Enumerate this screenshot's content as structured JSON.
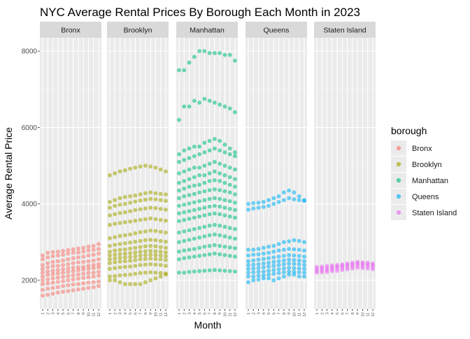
{
  "chart_data": {
    "type": "scatter",
    "title": "NYC Average Rental Prices By Borough Each Month in 2023",
    "xlabel": "Month",
    "ylabel": "Average Rental Price",
    "x_ticks": [
      "1",
      "2",
      "3",
      "4",
      "5",
      "6",
      "7",
      "8",
      "9",
      "10",
      "11",
      "12"
    ],
    "y_ticks": [
      2000,
      4000,
      6000,
      8000
    ],
    "ylim": [
      1250,
      8350
    ],
    "grid": true,
    "legend": {
      "title": "borough",
      "position": "right"
    },
    "facets": [
      "Bronx",
      "Brooklyn",
      "Manhattan",
      "Queens",
      "Staten Island"
    ],
    "series": [
      {
        "name": "Bronx",
        "color": "#F8766D",
        "lines": [
          [
            2650,
            2720,
            2740,
            2750,
            2770,
            2790,
            2810,
            2830,
            2850,
            2880,
            2900,
            2950
          ],
          [
            2550,
            2600,
            2630,
            2650,
            2670,
            2700,
            2720,
            2730,
            2750,
            2780,
            2800,
            2820
          ],
          [
            2400,
            2450,
            2480,
            2500,
            2520,
            2550,
            2580,
            2600,
            2620,
            2650,
            2670,
            2700
          ],
          [
            2300,
            2340,
            2370,
            2380,
            2400,
            2420,
            2450,
            2470,
            2480,
            2500,
            2520,
            2550
          ],
          [
            2200,
            2230,
            2250,
            2270,
            2290,
            2310,
            2330,
            2340,
            2350,
            2380,
            2400,
            2420
          ],
          [
            2100,
            2140,
            2160,
            2180,
            2200,
            2220,
            2240,
            2260,
            2280,
            2300,
            2320,
            2340
          ],
          [
            2000,
            2020,
            2050,
            2070,
            2090,
            2110,
            2130,
            2150,
            2170,
            2190,
            2200,
            2220
          ],
          [
            1900,
            1920,
            1940,
            1960,
            1980,
            2000,
            2020,
            2040,
            2060,
            2080,
            2100,
            2120
          ],
          [
            1750,
            1780,
            1800,
            1820,
            1850,
            1870,
            1890,
            1900,
            1920,
            1940,
            1950,
            1970
          ],
          [
            1600,
            1620,
            1650,
            1680,
            1700,
            1720,
            1740,
            1760,
            1780,
            1800,
            1820,
            1850
          ]
        ]
      },
      {
        "name": "Brooklyn",
        "color": "#A3A500",
        "lines": [
          [
            4750,
            4800,
            4850,
            4880,
            4920,
            4950,
            4980,
            5000,
            4980,
            4950,
            4900,
            4850
          ],
          [
            4050,
            4100,
            4150,
            4180,
            4200,
            4220,
            4250,
            4280,
            4300,
            4280,
            4260,
            4250
          ],
          [
            3900,
            3950,
            3980,
            4000,
            4030,
            4060,
            4090,
            4110,
            4130,
            4120,
            4100,
            4080
          ],
          [
            3700,
            3730,
            3760,
            3780,
            3810,
            3840,
            3860,
            3880,
            3900,
            3890,
            3870,
            3850
          ],
          [
            3450,
            3480,
            3500,
            3520,
            3540,
            3560,
            3580,
            3600,
            3620,
            3600,
            3580,
            3560
          ],
          [
            3100,
            3130,
            3160,
            3180,
            3200,
            3230,
            3260,
            3280,
            3300,
            3290,
            3270,
            3250
          ],
          [
            2900,
            2930,
            2950,
            2970,
            2990,
            3010,
            3030,
            3050,
            3060,
            3050,
            3030,
            3010
          ],
          [
            2750,
            2780,
            2800,
            2810,
            2830,
            2850,
            2870,
            2890,
            2900,
            2890,
            2870,
            2850
          ],
          [
            2650,
            2670,
            2690,
            2700,
            2710,
            2730,
            2750,
            2760,
            2770,
            2760,
            2750,
            2730
          ],
          [
            2550,
            2570,
            2590,
            2600,
            2610,
            2630,
            2650,
            2660,
            2670,
            2660,
            2650,
            2630
          ],
          [
            2450,
            2470,
            2490,
            2500,
            2510,
            2530,
            2550,
            2560,
            2570,
            2560,
            2550,
            2530
          ],
          [
            2300,
            2320,
            2340,
            2350,
            2360,
            2380,
            2400,
            2410,
            2420,
            2410,
            2400,
            2380
          ],
          [
            2100,
            2110,
            2130,
            2140,
            2150,
            2170,
            2190,
            2200,
            2210,
            2200,
            2190,
            2180
          ],
          [
            2000,
            2000,
            1950,
            1900,
            1900,
            1900,
            1900,
            1950,
            2000,
            2050,
            2100,
            2150
          ]
        ]
      },
      {
        "name": "Manhattan",
        "color": "#00BF7D",
        "lines": [
          [
            7500,
            7500,
            7700,
            7850,
            8000,
            8000,
            7950,
            7950,
            7950,
            7900,
            7900,
            7750
          ],
          [
            6200,
            6550,
            6550,
            6700,
            6650,
            6750,
            6700,
            6650,
            6600,
            6550,
            6500,
            6400
          ],
          [
            5300,
            5400,
            5450,
            5500,
            5500,
            5600,
            5650,
            5700,
            5650,
            5550,
            5450,
            5350
          ],
          [
            5100,
            5150,
            5200,
            5250,
            5300,
            5350,
            5400,
            5450,
            5400,
            5350,
            5300,
            5250
          ],
          [
            4800,
            4850,
            4900,
            4950,
            4950,
            5000,
            5050,
            5100,
            5050,
            5000,
            4950,
            4900
          ],
          [
            4550,
            4600,
            4650,
            4700,
            4750,
            4750,
            4800,
            4850,
            4800,
            4750,
            4700,
            4650
          ],
          [
            4350,
            4400,
            4450,
            4480,
            4500,
            4550,
            4600,
            4620,
            4600,
            4550,
            4500,
            4450
          ],
          [
            4150,
            4200,
            4230,
            4260,
            4300,
            4330,
            4360,
            4380,
            4360,
            4330,
            4300,
            4250
          ],
          [
            3950,
            3980,
            4010,
            4040,
            4070,
            4100,
            4130,
            4150,
            4130,
            4100,
            4070,
            4030
          ],
          [
            3750,
            3780,
            3810,
            3840,
            3870,
            3900,
            3930,
            3950,
            3930,
            3900,
            3870,
            3840
          ],
          [
            3550,
            3580,
            3610,
            3640,
            3670,
            3700,
            3730,
            3750,
            3730,
            3700,
            3670,
            3640
          ],
          [
            3250,
            3280,
            3310,
            3340,
            3370,
            3400,
            3430,
            3450,
            3430,
            3400,
            3370,
            3340
          ],
          [
            3000,
            3030,
            3060,
            3090,
            3120,
            3150,
            3180,
            3200,
            3180,
            3150,
            3120,
            3090
          ],
          [
            2750,
            2780,
            2800,
            2820,
            2850,
            2880,
            2900,
            2920,
            2900,
            2880,
            2860,
            2840
          ],
          [
            2550,
            2580,
            2600,
            2620,
            2640,
            2660,
            2680,
            2700,
            2680,
            2660,
            2640,
            2620
          ],
          [
            2200,
            2200,
            2220,
            2230,
            2240,
            2250,
            2260,
            2270,
            2260,
            2250,
            2240,
            2230
          ]
        ]
      },
      {
        "name": "Queens",
        "color": "#00B0F6",
        "lines": [
          [
            4000,
            4020,
            4030,
            4050,
            4100,
            4150,
            4200,
            4300,
            4350,
            4300,
            4200,
            4100
          ],
          [
            3850,
            3880,
            3900,
            3920,
            3950,
            4000,
            4050,
            4100,
            4150,
            4120,
            4100,
            4080
          ],
          [
            2800,
            2800,
            2820,
            2850,
            2880,
            2900,
            2950,
            3000,
            3020,
            3050,
            3030,
            3000
          ],
          [
            2650,
            2670,
            2680,
            2700,
            2720,
            2750,
            2780,
            2800,
            2820,
            2810,
            2800,
            2780
          ],
          [
            2500,
            2520,
            2540,
            2560,
            2580,
            2600,
            2620,
            2640,
            2660,
            2650,
            2640,
            2620
          ],
          [
            2400,
            2410,
            2420,
            2440,
            2460,
            2480,
            2500,
            2520,
            2540,
            2530,
            2520,
            2500
          ],
          [
            2300,
            2310,
            2320,
            2340,
            2360,
            2380,
            2400,
            2420,
            2440,
            2430,
            2420,
            2400
          ],
          [
            2200,
            2210,
            2220,
            2230,
            2250,
            2270,
            2290,
            2310,
            2330,
            2320,
            2310,
            2300
          ],
          [
            2100,
            2100,
            2120,
            2130,
            2150,
            2170,
            2190,
            2210,
            2230,
            2220,
            2210,
            2200
          ],
          [
            1950,
            2000,
            2020,
            2050,
            2050,
            2000,
            2050,
            2100,
            2150,
            2150,
            2100,
            2100
          ]
        ]
      },
      {
        "name": "Staten Island",
        "color": "#E76BF3",
        "lines": [
          [
            2350,
            2360,
            2380,
            2390,
            2400,
            2420,
            2440,
            2460,
            2480,
            2470,
            2460,
            2440
          ],
          [
            2300,
            2310,
            2320,
            2340,
            2360,
            2380,
            2400,
            2420,
            2440,
            2430,
            2420,
            2400
          ],
          [
            2250,
            2260,
            2270,
            2290,
            2310,
            2330,
            2350,
            2370,
            2390,
            2380,
            2370,
            2350
          ],
          [
            2200,
            2210,
            2220,
            2240,
            2250,
            2270,
            2290,
            2310,
            2330,
            2320,
            2310,
            2290
          ]
        ]
      }
    ]
  }
}
